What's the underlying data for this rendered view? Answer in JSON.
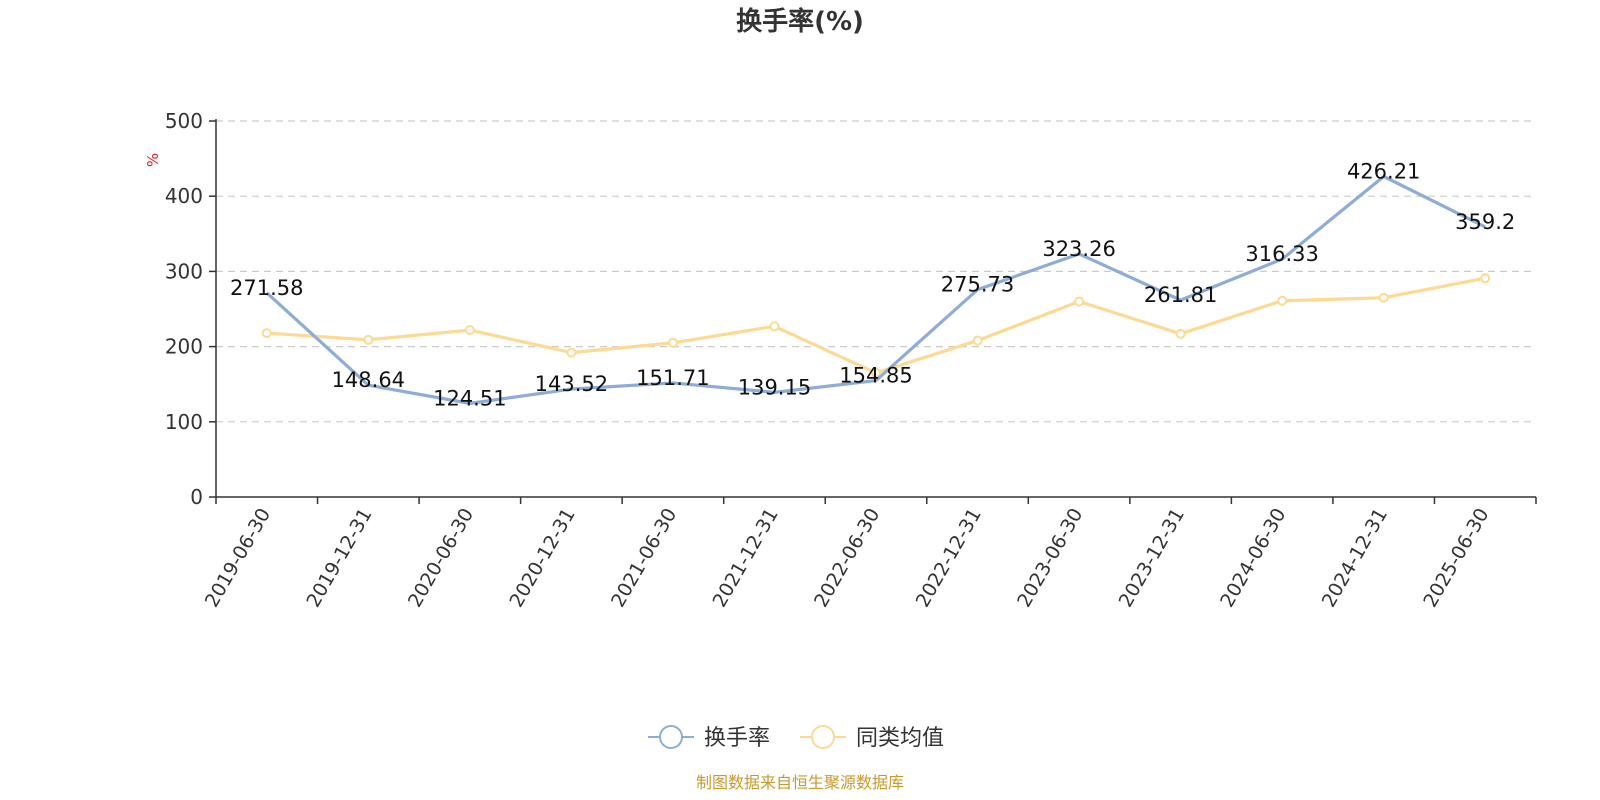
{
  "chart_data": {
    "type": "line",
    "title": "换手率(%)",
    "ylabel": "%",
    "xlabel": "",
    "ylim": [
      0,
      500
    ],
    "yticks": [
      0,
      100,
      200,
      300,
      400,
      500
    ],
    "grid": true,
    "legend_position": "bottom-center",
    "categories": [
      "2019-06-30",
      "2019-12-31",
      "2020-06-30",
      "2020-12-31",
      "2021-06-30",
      "2021-12-31",
      "2022-06-30",
      "2022-12-31",
      "2023-06-30",
      "2023-12-31",
      "2024-06-30",
      "2024-12-31",
      "2025-06-30"
    ],
    "series": [
      {
        "name": "换手率",
        "color": "#8eacd8",
        "values": [
          271.58,
          148.64,
          124.51,
          143.52,
          151.71,
          139.15,
          154.85,
          275.73,
          323.26,
          261.81,
          316.33,
          426.21,
          359.2
        ],
        "data_labels": [
          "271.58",
          "148.64",
          "124.51",
          "143.52",
          "151.71",
          "139.15",
          "154.85",
          "275.73",
          "323.26",
          "261.81",
          "316.33",
          "426.21",
          "359.2"
        ]
      },
      {
        "name": "同类均值",
        "color": "#fdd994",
        "values": [
          218,
          209,
          222,
          192,
          205,
          227,
          165,
          208,
          260,
          217,
          261,
          265,
          291
        ]
      }
    ]
  },
  "source_note": "制图数据来自恒生聚源数据库"
}
